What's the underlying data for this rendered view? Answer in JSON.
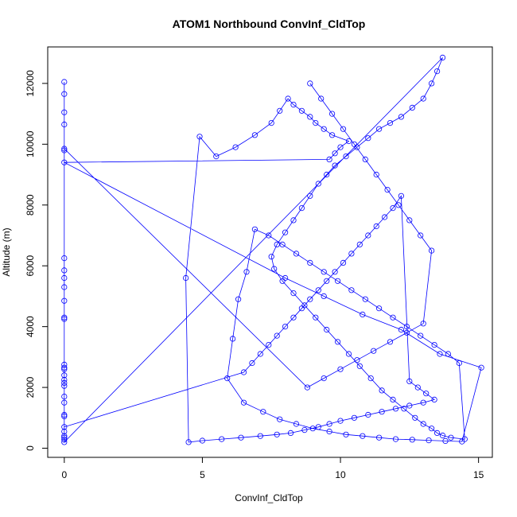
{
  "chart_data": {
    "type": "scatter",
    "title": "ATOM1 Northbound ConvInf_CldTop",
    "xlabel": "ConvInf_CldTop",
    "ylabel": "Altitude (m)",
    "xlim": [
      -0.6,
      15.5
    ],
    "ylim": [
      -300,
      13200
    ],
    "x_ticks": [
      0,
      5,
      10,
      15
    ],
    "y_ticks": [
      0,
      2000,
      4000,
      6000,
      8000,
      10000,
      12000
    ],
    "grid": false,
    "legend": "none",
    "style": "points connected by lines (type = o)",
    "color": "#0000ff",
    "series": [
      {
        "x": [
          0,
          0,
          0,
          0,
          0,
          0,
          0,
          0,
          0,
          0,
          0,
          0,
          0,
          0,
          0,
          0,
          0,
          0,
          0,
          0,
          13.7,
          13.5,
          13.3,
          13.0,
          12.6,
          12.2,
          11.8,
          11.4,
          11.0,
          10.6,
          10.2,
          9.8,
          9.5,
          9.2,
          8.9,
          8.6,
          8.3,
          8.0,
          7.7,
          7.5,
          7.6,
          7.9,
          8.3,
          8.7,
          9.1,
          9.5,
          9.9,
          10.3,
          10.7,
          11.1,
          11.5,
          11.9,
          12.3,
          12.7,
          13.0,
          13.3,
          13.5,
          13.7,
          14.0,
          14.5,
          14.3,
          13.9,
          13.4,
          12.9,
          12.4,
          11.9,
          11.4,
          10.9,
          10.4,
          9.9,
          9.4,
          8.9,
          8.4,
          7.9,
          7.4,
          6.9,
          6.6,
          6.3,
          6.1,
          5.9,
          6.5,
          7.2,
          7.8,
          8.4,
          9.0,
          9.6,
          10.2,
          10.8,
          11.4,
          12.0,
          12.6,
          13.2,
          13.8,
          14.4,
          15.1,
          13.6,
          12.2,
          10.8,
          9.4,
          8.0,
          0,
          9.6,
          9.8,
          10.0,
          10.3,
          9.7,
          9.4,
          9.1,
          8.9,
          8.6,
          8.3,
          8.1,
          7.8,
          7.5,
          6.9,
          6.2,
          5.5,
          4.9,
          4.4,
          4.5,
          5.0,
          5.7,
          6.4,
          7.1,
          7.7,
          8.2,
          8.7,
          9.2,
          9.6,
          10.0,
          10.5,
          11.0,
          11.5,
          12.0,
          12.5,
          13.0,
          13.4,
          13.1,
          12.8,
          12.5,
          12.2,
          11.9,
          11.6,
          11.3,
          11.0,
          10.7,
          10.4,
          10.1,
          9.8,
          9.5,
          9.2,
          8.9,
          8.6,
          8.3,
          8.0,
          7.7,
          7.4,
          7.1,
          6.8,
          6.5,
          0,
          0,
          0,
          0,
          0,
          0,
          0,
          0,
          0,
          0,
          8.8,
          9.4,
          10.0,
          10.6,
          11.2,
          11.8,
          12.4,
          13.0,
          13.3,
          12.9,
          12.5,
          12.1,
          11.7,
          11.3,
          10.9,
          10.5,
          10.1,
          9.7,
          9.3,
          8.9
        ],
        "y": [
          12050,
          11650,
          11050,
          10650,
          9800,
          6250,
          5850,
          5300,
          4850,
          4250,
          2750,
          2600,
          2400,
          2150,
          2050,
          1700,
          1100,
          550,
          350,
          200,
          12850,
          12400,
          12000,
          11500,
          11200,
          10900,
          10700,
          10500,
          10200,
          9900,
          9600,
          9300,
          9000,
          8700,
          8300,
          7900,
          7500,
          7100,
          6700,
          6300,
          5900,
          5500,
          5100,
          4700,
          4300,
          3900,
          3500,
          3100,
          2700,
          2300,
          1900,
          1600,
          1300,
          1000,
          800,
          650,
          500,
          420,
          350,
          300,
          2800,
          3100,
          3400,
          3700,
          4000,
          4300,
          4600,
          4900,
          5200,
          5500,
          5800,
          6100,
          6400,
          6700,
          7000,
          7200,
          5800,
          4900,
          3600,
          2300,
          1500,
          1200,
          950,
          800,
          650,
          550,
          450,
          400,
          350,
          300,
          280,
          260,
          240,
          220,
          2650,
          3100,
          3900,
          4400,
          5000,
          5600,
          9400,
          9500,
          9700,
          9900,
          10100,
          10300,
          10500,
          10700,
          10900,
          11100,
          11300,
          11500,
          11100,
          10700,
          10300,
          9900,
          9600,
          10250,
          5600,
          200,
          250,
          300,
          350,
          400,
          450,
          500,
          600,
          700,
          800,
          900,
          1000,
          1100,
          1200,
          1300,
          1400,
          1500,
          1600,
          1800,
          2000,
          2200,
          8300,
          7900,
          7600,
          7300,
          7000,
          6700,
          6400,
          6100,
          5800,
          5500,
          5200,
          4900,
          4600,
          4300,
          4000,
          3700,
          3400,
          3100,
          2800,
          2500,
          700,
          400,
          280,
          1050,
          1500,
          2250,
          2650,
          4300,
          5600,
          9850,
          2000,
          2300,
          2600,
          2900,
          3200,
          3500,
          3800,
          4100,
          6500,
          7000,
          7500,
          8000,
          8500,
          9000,
          9500,
          10000,
          10500,
          11000,
          11500,
          12000
        ]
      }
    ]
  }
}
